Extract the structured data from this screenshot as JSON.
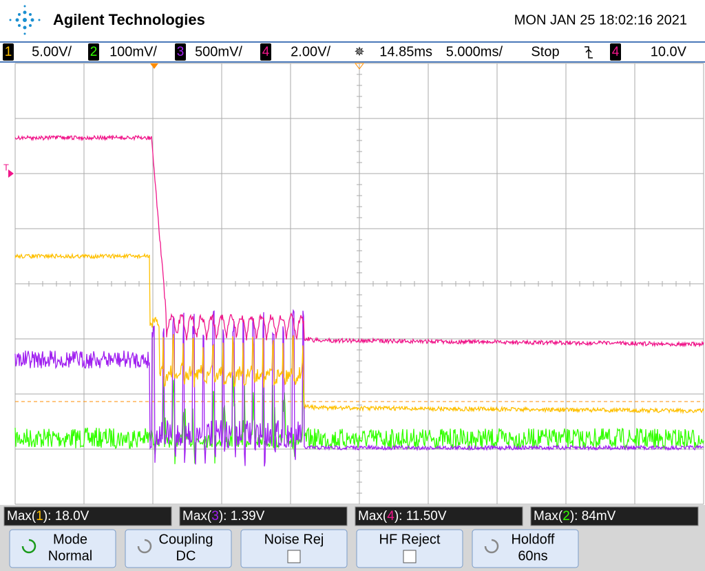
{
  "header": {
    "brand": "Agilent Technologies",
    "datetime": "MON JAN 25 18:02:16 2021"
  },
  "channels": [
    {
      "number": "1",
      "scale": "5.00V/",
      "color": "#ffc000"
    },
    {
      "number": "2",
      "scale": "100mV/",
      "color": "#33ff00"
    },
    {
      "number": "3",
      "scale": "500mV/",
      "color": "#a020f0"
    },
    {
      "number": "4",
      "scale": "2.00V/",
      "color": "#f0168a"
    }
  ],
  "timebase": {
    "delay": "14.85ms",
    "scale": "5.000ms/",
    "status": "Stop",
    "trigger_channel": "4",
    "trigger_level": "10.0V"
  },
  "trigger_marker": "T",
  "measurements": [
    {
      "prefix": "Max(",
      "channel": "1",
      "suffix": "): 18.0V",
      "color": "#ffc000"
    },
    {
      "prefix": "Max(",
      "channel": "3",
      "suffix": "): 1.39V",
      "color": "#a020f0"
    },
    {
      "prefix": "Max(",
      "channel": "4",
      "suffix": "): 11.50V",
      "color": "#f0168a"
    },
    {
      "prefix": "Max(",
      "channel": "2",
      "suffix": "): 84mV",
      "color": "#33ff00"
    }
  ],
  "softkeys": [
    {
      "label": "Mode",
      "value": "Normal"
    },
    {
      "label": "Coupling",
      "value": "DC"
    },
    {
      "label": "Noise Rej"
    },
    {
      "label": "HF Reject"
    },
    {
      "label": "Holdoff",
      "value": "60ns"
    }
  ]
}
